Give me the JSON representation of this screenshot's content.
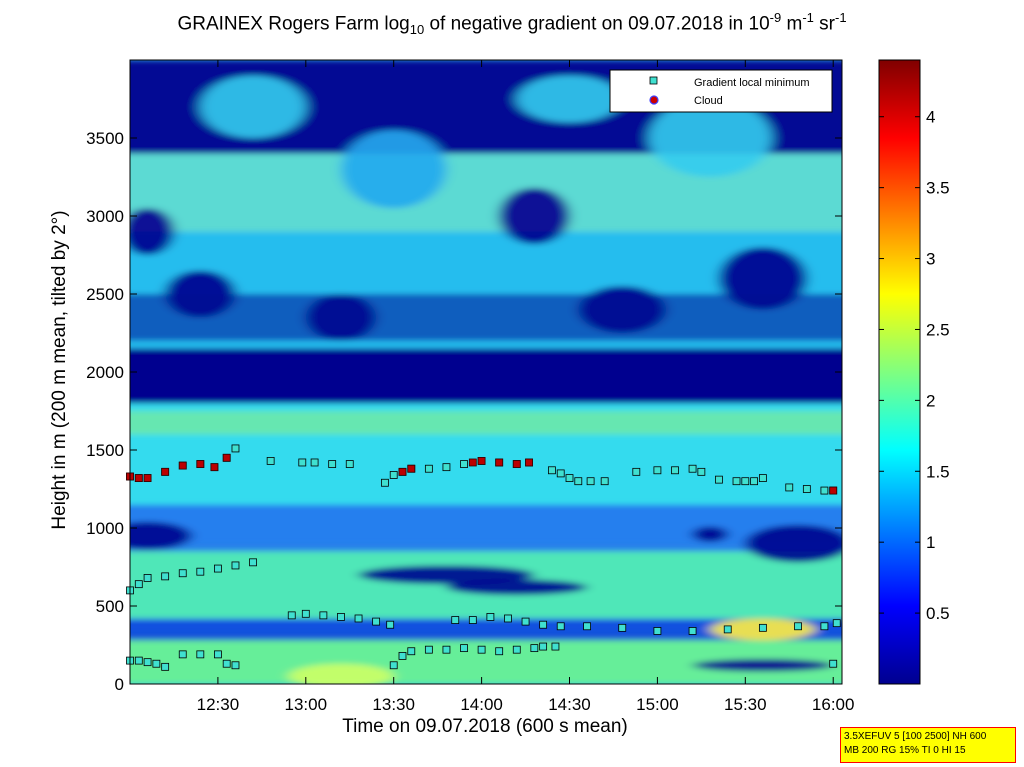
{
  "title": {
    "pre": "GRAINEX Rogers Farm log",
    "sub": "10",
    "mid": " of negative gradient on 09.07.2018 in 10",
    "sup1": "-9",
    "unit1": " m",
    "sup2": "-1",
    "unit2": " sr",
    "sup3": "-1"
  },
  "info_box": {
    "line1": "3.5XEFUV 5 [100 2500] NH 600",
    "line2": "MB 200 RG 15% TI 0 HI 15"
  },
  "chart_data": {
    "type": "heatmap",
    "xlabel": "Time on 09.07.2018 (600 s mean)",
    "ylabel": "Height in m (200 m mean, tilted by 2°)",
    "xlim_hours": [
      12.0,
      16.05
    ],
    "ylim": [
      0,
      4000
    ],
    "x_ticks": [
      {
        "value": 12.5,
        "label": "12:30"
      },
      {
        "value": 13.0,
        "label": "13:00"
      },
      {
        "value": 13.5,
        "label": "13:30"
      },
      {
        "value": 14.0,
        "label": "14:00"
      },
      {
        "value": 14.5,
        "label": "14:30"
      },
      {
        "value": 15.0,
        "label": "15:00"
      },
      {
        "value": 15.5,
        "label": "15:30"
      },
      {
        "value": 16.0,
        "label": "16:00"
      }
    ],
    "y_ticks": [
      0,
      500,
      1000,
      1500,
      2000,
      2500,
      3000,
      3500
    ],
    "colorbar": {
      "range": [
        0,
        4.4
      ],
      "ticks": [
        0.5,
        1,
        1.5,
        2,
        2.5,
        3,
        3.5,
        4
      ],
      "colormap": "jet"
    },
    "legend": {
      "placement": "top-right",
      "entries": [
        {
          "label": "Gradient local minimum",
          "color": "#40e0d0",
          "marker": "square"
        },
        {
          "label": "Cloud",
          "color": "#cc0000",
          "marker": "circle"
        }
      ]
    },
    "series": [
      {
        "name": "Gradient local minimum",
        "segments": [
          {
            "t": [
              12.0,
              12.05,
              12.1,
              12.2,
              12.3,
              12.4,
              12.48,
              12.55,
              12.6
            ],
            "h": [
              1330,
              1320,
              1320,
              1360,
              1400,
              1410,
              1390,
              1450,
              1510
            ]
          },
          {
            "t": [
              12.8
            ],
            "h": [
              1430
            ]
          },
          {
            "t": [
              12.98,
              13.05,
              13.15,
              13.25
            ],
            "h": [
              1420,
              1420,
              1410,
              1410
            ]
          },
          {
            "t": [
              13.45,
              13.5,
              13.55,
              13.6,
              13.7,
              13.8,
              13.9,
              14.0,
              14.1,
              14.2,
              14.27
            ],
            "h": [
              1290,
              1340,
              1360,
              1380,
              1380,
              1390,
              1410,
              1430,
              1420,
              1410,
              1420
            ]
          },
          {
            "t": [
              14.4,
              14.45,
              14.5,
              14.55,
              14.62,
              14.7
            ],
            "h": [
              1370,
              1350,
              1320,
              1300,
              1300,
              1300
            ]
          },
          {
            "t": [
              14.88,
              15.0,
              15.1,
              15.2,
              15.25,
              15.35,
              15.45,
              15.5,
              15.55,
              15.6
            ],
            "h": [
              1360,
              1370,
              1370,
              1380,
              1360,
              1310,
              1300,
              1300,
              1300,
              1320
            ]
          },
          {
            "t": [
              15.75,
              15.85,
              15.95,
              16.0
            ],
            "h": [
              1260,
              1250,
              1240,
              1240
            ]
          },
          {
            "t": [
              12.0,
              12.05,
              12.1,
              12.2,
              12.3,
              12.4,
              12.5,
              12.6,
              12.7
            ],
            "h": [
              600,
              640,
              680,
              690,
              710,
              720,
              740,
              760,
              780
            ]
          },
          {
            "t": [
              12.92,
              13.0,
              13.1,
              13.2,
              13.3,
              13.4,
              13.48
            ],
            "h": [
              440,
              450,
              440,
              430,
              420,
              400,
              380
            ]
          },
          {
            "t": [
              13.85,
              13.95,
              14.05,
              14.15,
              14.25,
              14.35,
              14.45,
              14.6,
              14.8,
              15.0,
              15.2,
              15.4,
              15.6,
              15.8,
              15.95,
              16.02
            ],
            "h": [
              410,
              410,
              430,
              420,
              400,
              380,
              370,
              370,
              360,
              340,
              340,
              350,
              360,
              370,
              370,
              390
            ]
          },
          {
            "t": [
              12.0,
              12.05,
              12.1,
              12.15,
              12.2
            ],
            "h": [
              150,
              150,
              140,
              130,
              110
            ]
          },
          {
            "t": [
              12.3,
              12.4,
              12.5
            ],
            "h": [
              190,
              190,
              190
            ]
          },
          {
            "t": [
              12.55,
              12.6
            ],
            "h": [
              130,
              120
            ]
          },
          {
            "t": [
              13.5,
              13.55,
              13.6,
              13.7,
              13.8,
              13.9,
              14.0,
              14.1,
              14.2,
              14.3,
              14.35,
              14.42
            ],
            "h": [
              120,
              180,
              210,
              220,
              220,
              230,
              220,
              210,
              220,
              230,
              240,
              240
            ]
          },
          {
            "t": [
              16.0
            ],
            "h": [
              130
            ]
          }
        ]
      },
      {
        "name": "Cloud",
        "segments": [
          {
            "t": [
              12.0,
              12.05,
              12.1,
              12.2,
              12.3,
              12.4,
              12.48,
              12.55
            ],
            "h": [
              1330,
              1320,
              1320,
              1360,
              1400,
              1410,
              1390,
              1450
            ]
          },
          {
            "t": [
              13.55,
              13.6
            ],
            "h": [
              1360,
              1380
            ]
          },
          {
            "t": [
              13.95,
              14.0,
              14.1,
              14.2,
              14.27
            ],
            "h": [
              1420,
              1430,
              1420,
              1410,
              1420
            ]
          },
          {
            "t": [
              16.0
            ],
            "h": [
              1240
            ]
          }
        ]
      }
    ]
  }
}
